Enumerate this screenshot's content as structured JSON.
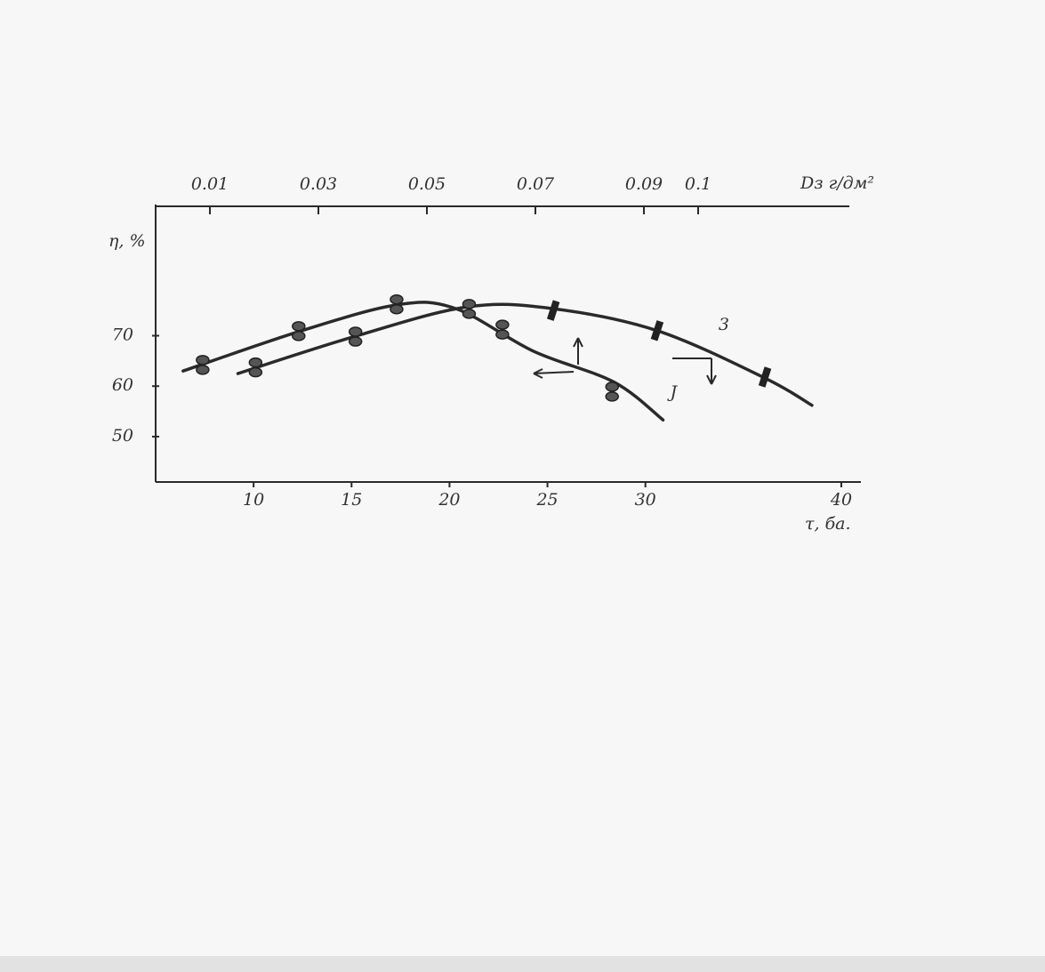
{
  "chart_data": {
    "type": "line",
    "x_label": "τ, ба.",
    "x2_label": "Dз г/дм²",
    "y_label": "η, %",
    "xlim": [
      5,
      41
    ],
    "xticks": [
      10,
      15,
      20,
      25,
      30,
      40
    ],
    "x2lim": [
      0,
      0.13
    ],
    "x2ticks": [
      0.01,
      0.03,
      0.05,
      0.07,
      0.09,
      0.1
    ],
    "ylim": [
      41,
      96
    ],
    "yticks": [
      50,
      60,
      70
    ],
    "series": [
      {
        "name": "J",
        "color": "#2a2a2a",
        "x": [
          6.4,
          12.3,
          17.3,
          20.3,
          24.3,
          28.4,
          30.9
        ],
        "values": [
          63.0,
          70.8,
          76.1,
          75.4,
          66.9,
          60.8,
          53.3
        ]
      },
      {
        "name": "3",
        "color": "#2a2a2a",
        "x": [
          9.2,
          15.2,
          20.9,
          25.2,
          30.6,
          36.1,
          38.5
        ],
        "values": [
          62.5,
          69.9,
          75.7,
          75.4,
          71.0,
          61.6,
          56.2
        ]
      }
    ],
    "points": [
      {
        "shape": "circle",
        "x": [
          7.4,
          12.3,
          17.3,
          22.7,
          28.3,
          10.1,
          15.2,
          21.0
        ],
        "values": [
          64.3,
          71.0,
          76.3,
          71.3,
          59.0,
          63.8,
          69.9,
          75.4
        ]
      },
      {
        "shape": "slash",
        "x": [
          25.3,
          30.6,
          36.1
        ],
        "values": [
          75.0,
          71.0,
          61.8
        ]
      }
    ]
  }
}
